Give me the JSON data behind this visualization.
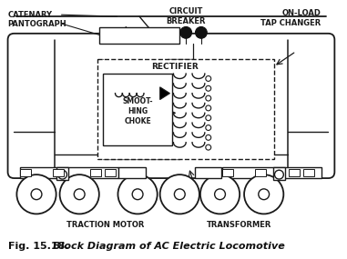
{
  "title": "Fig. 15.18.",
  "title_italic": "Block Diagram of AC Electric Locomotive",
  "bg_color": "#ffffff",
  "line_color": "#1a1a1a",
  "figsize": [
    3.81,
    2.85
  ],
  "dpi": 100,
  "labels": {
    "catenary": "CATENARY",
    "pantograph": "PANTOGRAPH",
    "circuit_breaker": "CIRCUIT\nBREAKER",
    "on_load": "ON-LOAD\nTAP CHANGER",
    "rectifier": "RECTIFIER",
    "smoothing_choke": "SMOOT-\nHING\nCHOKE",
    "traction_motor": "TRACTION MOTOR",
    "transformer": "TRANSFORMER"
  }
}
